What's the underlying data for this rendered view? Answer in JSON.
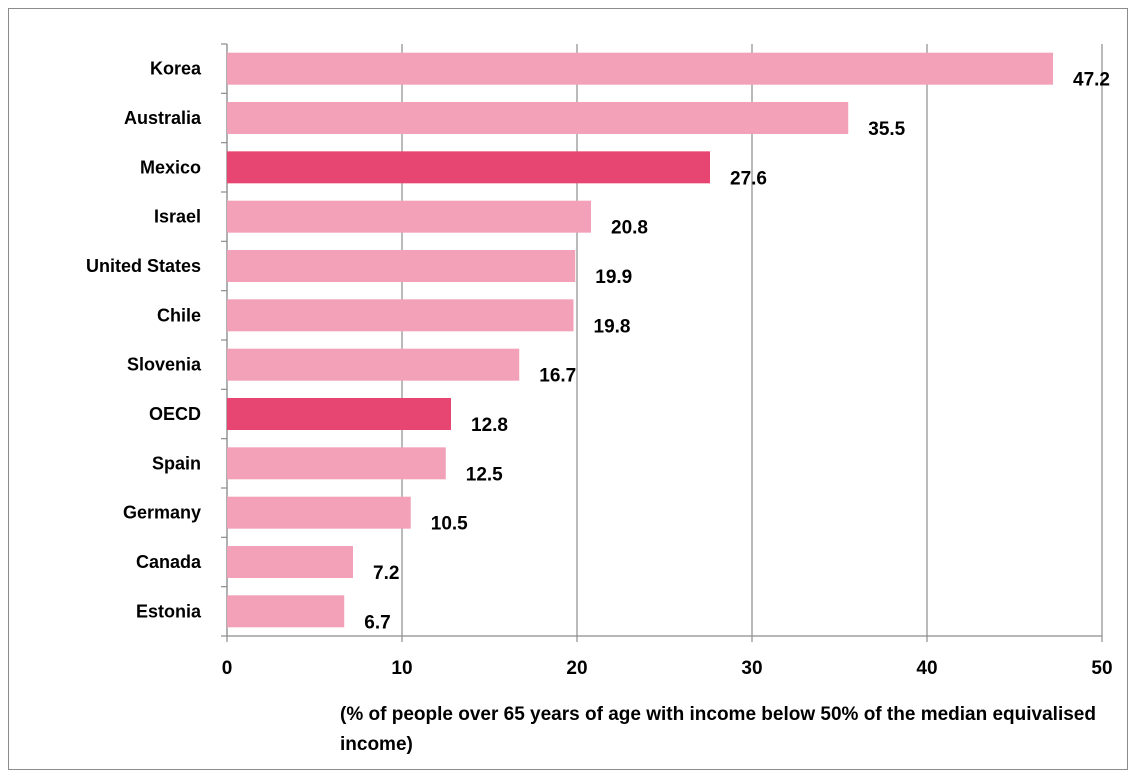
{
  "chart_data": {
    "type": "bar",
    "orientation": "horizontal",
    "categories": [
      "Korea",
      "Australia",
      "Mexico",
      "Israel",
      "United States",
      "Chile",
      "Slovenia",
      "OECD",
      "Spain",
      "Germany",
      "Canada",
      "Estonia"
    ],
    "values": [
      47.2,
      35.5,
      27.6,
      20.8,
      19.9,
      19.8,
      16.7,
      12.8,
      12.5,
      10.5,
      7.2,
      6.7
    ],
    "value_labels": [
      "47.2",
      "35.5",
      "27.6",
      "20.8",
      "19.9",
      "19.8",
      "16.7",
      "12.8",
      "12.5",
      "10.5",
      "7.2",
      "6.7"
    ],
    "highlighted": [
      "Mexico",
      "OECD"
    ],
    "colors": {
      "default": "#f2a1b8",
      "highlight": "#e84672",
      "gridline": "#8c8c8c"
    },
    "xlim": [
      0,
      50
    ],
    "xticks": [
      0,
      10,
      20,
      30,
      40,
      50
    ],
    "xtick_labels": [
      "0",
      "10",
      "20",
      "30",
      "40",
      "50"
    ],
    "xlabel": "(% of people over 65 years of age with income below 50% of the median equivalised income)",
    "grid": "vertical"
  }
}
